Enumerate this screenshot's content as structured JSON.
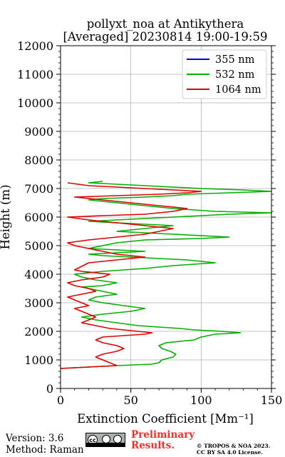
{
  "chart_data": {
    "type": "line",
    "title": "pollyxt_noa at Antikythera",
    "subtitle": "[Averaged] 20230814 19:00-19:59",
    "xlabel": "Extinction Coefficient [Mm⁻¹]",
    "ylabel": "Height (m)",
    "xlim": [
      0,
      150
    ],
    "ylim": [
      0,
      12000
    ],
    "xticks": [
      "0",
      "50",
      "100",
      "150"
    ],
    "yticks": [
      "0",
      "1000",
      "2000",
      "3000",
      "4000",
      "5000",
      "6000",
      "7000",
      "8000",
      "9000",
      "10000",
      "11000",
      "12000"
    ],
    "grid": true,
    "legend_position": "top-right",
    "series": [
      {
        "name": "355 nm",
        "color": "#0000ff",
        "x": [],
        "y": []
      },
      {
        "name": "532 nm",
        "color": "#00b000",
        "x": [
          0,
          40,
          65,
          70,
          72,
          80,
          82,
          78,
          72,
          70,
          75,
          95,
          100,
          110,
          128,
          115,
          95,
          85,
          70,
          55,
          40,
          25,
          15,
          30,
          50,
          60,
          45,
          30,
          20,
          25,
          40,
          30,
          20,
          15,
          30,
          40,
          25,
          15,
          10,
          30,
          60,
          80,
          110,
          90,
          70,
          50,
          30,
          20,
          40,
          60,
          40,
          20,
          30,
          40,
          60,
          100,
          120,
          80,
          40,
          60,
          80,
          60,
          40,
          20,
          40,
          60,
          80,
          100,
          120,
          150,
          110,
          80,
          60,
          40,
          20,
          30,
          60,
          80,
          90,
          120,
          150,
          130,
          100,
          80,
          60,
          40,
          20,
          30
        ],
        "y": [
          700,
          800,
          850,
          900,
          1000,
          1100,
          1200,
          1300,
          1400,
          1500,
          1600,
          1700,
          1800,
          1900,
          1950,
          2000,
          2050,
          2100,
          2150,
          2200,
          2300,
          2400,
          2500,
          2600,
          2700,
          2800,
          2900,
          3000,
          3100,
          3200,
          3300,
          3400,
          3500,
          3550,
          3600,
          3700,
          3800,
          3900,
          4000,
          4100,
          4200,
          4300,
          4400,
          4500,
          4550,
          4600,
          4650,
          4700,
          4750,
          4800,
          4850,
          4900,
          5000,
          5100,
          5200,
          5250,
          5300,
          5400,
          5500,
          5600,
          5700,
          5750,
          5800,
          5850,
          5900,
          5950,
          6000,
          6050,
          6100,
          6150,
          6200,
          6300,
          6400,
          6500,
          6600,
          6650,
          6700,
          6750,
          6800,
          6850,
          6900,
          6950,
          7000,
          7050,
          7100,
          7150,
          7200,
          7250
        ]
      },
      {
        "name": "1064 nm",
        "color": "#e00000",
        "x": [
          0,
          20,
          40,
          35,
          30,
          25,
          30,
          40,
          45,
          40,
          30,
          25,
          30,
          45,
          60,
          65,
          55,
          45,
          35,
          25,
          15,
          20,
          25,
          20,
          15,
          10,
          20,
          15,
          10,
          5,
          15,
          25,
          20,
          10,
          5,
          15,
          30,
          35,
          25,
          15,
          10,
          20,
          40,
          60,
          50,
          40,
          30,
          20,
          10,
          5,
          20,
          40,
          60,
          70,
          80,
          60,
          40,
          20,
          5,
          30,
          60,
          80,
          90,
          70,
          50,
          30,
          10,
          40,
          70,
          90,
          100,
          80,
          60,
          40,
          20,
          5
        ],
        "y": [
          700,
          750,
          800,
          900,
          1000,
          1100,
          1200,
          1300,
          1400,
          1500,
          1600,
          1700,
          1800,
          1850,
          1900,
          1950,
          2000,
          2050,
          2100,
          2200,
          2300,
          2400,
          2500,
          2600,
          2700,
          2800,
          2900,
          3000,
          3100,
          3200,
          3300,
          3400,
          3500,
          3600,
          3700,
          3800,
          3900,
          4000,
          4050,
          4100,
          4150,
          4400,
          4500,
          4600,
          4650,
          4700,
          4800,
          4900,
          5000,
          5100,
          5200,
          5300,
          5400,
          5500,
          5600,
          5700,
          5800,
          5900,
          6000,
          6050,
          6100,
          6200,
          6300,
          6400,
          6500,
          6600,
          6700,
          6750,
          6800,
          6850,
          6900,
          6950,
          7000,
          7050,
          7100,
          7200
        ]
      }
    ]
  },
  "footer": {
    "version": "Version: 3.6",
    "method": "Method: Raman",
    "prelim_line1": "Preliminary",
    "prelim_line2": "Results.",
    "copyright_line1": "© TROPOS & NOA 2023.",
    "copyright_line2": "CC BY SA 4.0 License.",
    "cc_badge_label": "cc",
    "cc_badge_by": "BY",
    "cc_badge_sa": "SA"
  }
}
